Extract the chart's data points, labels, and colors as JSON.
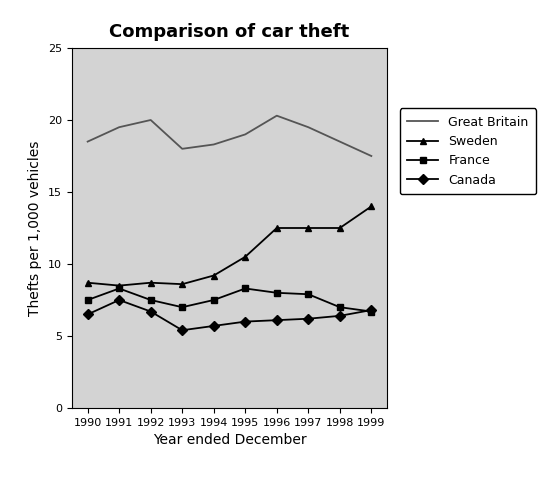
{
  "title": "Comparison of car theft",
  "xlabel": "Year ended December",
  "ylabel": "Thefts per 1,000 vehicles",
  "years": [
    1990,
    1991,
    1992,
    1993,
    1994,
    1995,
    1996,
    1997,
    1998,
    1999
  ],
  "series": {
    "Great Britain": {
      "values": [
        18.5,
        19.5,
        20.0,
        18.0,
        18.3,
        19.0,
        20.3,
        19.5,
        18.5,
        17.5
      ],
      "color": "#555555",
      "marker": null,
      "linestyle": "-"
    },
    "Sweden": {
      "values": [
        8.7,
        8.5,
        8.7,
        8.6,
        9.2,
        10.5,
        12.5,
        12.5,
        12.5,
        14.0
      ],
      "color": "#000000",
      "marker": "^",
      "linestyle": "-"
    },
    "France": {
      "values": [
        7.5,
        8.3,
        7.5,
        7.0,
        7.5,
        8.3,
        8.0,
        7.9,
        7.0,
        6.7
      ],
      "color": "#000000",
      "marker": "s",
      "linestyle": "-"
    },
    "Canada": {
      "values": [
        6.5,
        7.5,
        6.7,
        5.4,
        5.7,
        6.0,
        6.1,
        6.2,
        6.4,
        6.8
      ],
      "color": "#000000",
      "marker": "D",
      "linestyle": "-"
    }
  },
  "ylim": [
    0,
    25
  ],
  "yticks": [
    0,
    5,
    10,
    15,
    20,
    25
  ],
  "xlim": [
    1989.5,
    1999.5
  ],
  "background_color": "#d3d3d3",
  "figure_background": "#ffffff",
  "legend_order": [
    "Great Britain",
    "Sweden",
    "France",
    "Canada"
  ],
  "title_fontsize": 13,
  "tick_fontsize": 8,
  "axis_label_fontsize": 10
}
